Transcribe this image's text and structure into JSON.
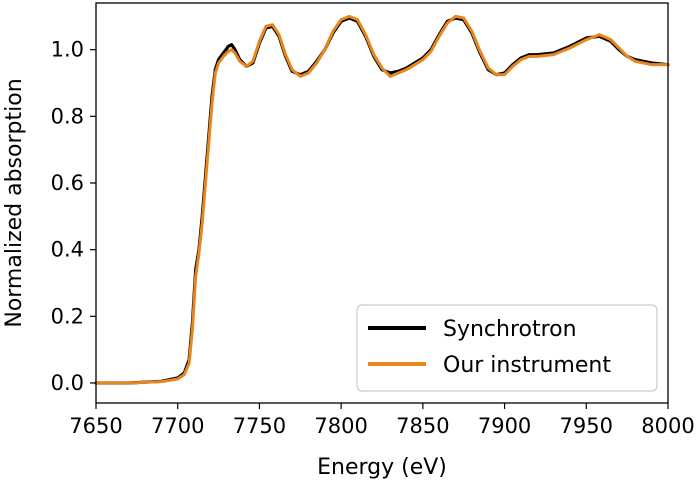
{
  "chart_data": {
    "type": "line",
    "title": "",
    "xlabel": "Energy (eV)",
    "ylabel": "Normalized absorption",
    "xlim": [
      7650,
      8000
    ],
    "ylim": [
      -0.06,
      1.14
    ],
    "xticks": [
      "7650",
      "7700",
      "7750",
      "7800",
      "7850",
      "7900",
      "7950",
      "8000"
    ],
    "yticks": [
      "0.0",
      "0.2",
      "0.4",
      "0.6",
      "0.8",
      "1.0"
    ],
    "grid": false,
    "legend_position": "lower-right",
    "series": [
      {
        "name": "Synchrotron",
        "color": "#000000",
        "x": [
          7650,
          7670,
          7690,
          7700,
          7704,
          7707,
          7709,
          7711,
          7713,
          7715,
          7717,
          7719,
          7721,
          7723,
          7725,
          7728,
          7731,
          7733,
          7735,
          7738,
          7742,
          7746,
          7750,
          7754,
          7758,
          7762,
          7766,
          7770,
          7775,
          7780,
          7785,
          7790,
          7795,
          7800,
          7805,
          7810,
          7815,
          7820,
          7825,
          7830,
          7835,
          7840,
          7845,
          7850,
          7855,
          7860,
          7865,
          7870,
          7875,
          7880,
          7885,
          7890,
          7895,
          7900,
          7905,
          7910,
          7915,
          7920,
          7930,
          7940,
          7950,
          7958,
          7965,
          7970,
          7975,
          7980,
          7990,
          8000
        ],
        "y": [
          0.0,
          0.0,
          0.005,
          0.015,
          0.03,
          0.07,
          0.18,
          0.34,
          0.4,
          0.5,
          0.62,
          0.74,
          0.86,
          0.94,
          0.97,
          0.99,
          1.01,
          1.015,
          1.0,
          0.97,
          0.95,
          0.96,
          1.02,
          1.065,
          1.07,
          1.04,
          0.98,
          0.935,
          0.925,
          0.935,
          0.965,
          1.0,
          1.05,
          1.085,
          1.095,
          1.085,
          1.04,
          0.98,
          0.94,
          0.93,
          0.935,
          0.945,
          0.96,
          0.975,
          1.0,
          1.045,
          1.085,
          1.095,
          1.09,
          1.05,
          0.99,
          0.94,
          0.925,
          0.93,
          0.955,
          0.975,
          0.985,
          0.985,
          0.99,
          1.01,
          1.035,
          1.04,
          1.025,
          1.0,
          0.98,
          0.97,
          0.96,
          0.955
        ]
      },
      {
        "name": "Our instrument",
        "color": "#e8861d",
        "x": [
          7650,
          7670,
          7690,
          7700,
          7704,
          7707,
          7709,
          7711,
          7713,
          7715,
          7717,
          7719,
          7721,
          7723,
          7725,
          7728,
          7731,
          7733,
          7735,
          7738,
          7742,
          7746,
          7750,
          7754,
          7758,
          7762,
          7766,
          7770,
          7775,
          7780,
          7785,
          7790,
          7795,
          7800,
          7805,
          7810,
          7815,
          7820,
          7825,
          7830,
          7835,
          7840,
          7845,
          7850,
          7855,
          7860,
          7865,
          7870,
          7875,
          7880,
          7885,
          7890,
          7895,
          7900,
          7905,
          7910,
          7915,
          7920,
          7930,
          7940,
          7950,
          7958,
          7965,
          7970,
          7975,
          7980,
          7990,
          8000
        ],
        "y": [
          0.0,
          0.0,
          0.004,
          0.012,
          0.025,
          0.06,
          0.16,
          0.32,
          0.39,
          0.48,
          0.6,
          0.72,
          0.84,
          0.93,
          0.96,
          0.98,
          0.995,
          1.0,
          0.99,
          0.965,
          0.95,
          0.965,
          1.025,
          1.07,
          1.075,
          1.045,
          0.985,
          0.94,
          0.92,
          0.93,
          0.96,
          1.0,
          1.055,
          1.09,
          1.1,
          1.09,
          1.045,
          0.985,
          0.945,
          0.92,
          0.93,
          0.94,
          0.955,
          0.97,
          0.995,
          1.04,
          1.08,
          1.1,
          1.095,
          1.055,
          0.995,
          0.945,
          0.925,
          0.925,
          0.95,
          0.97,
          0.98,
          0.98,
          0.985,
          1.005,
          1.03,
          1.045,
          1.03,
          1.005,
          0.98,
          0.965,
          0.955,
          0.955
        ]
      }
    ]
  }
}
